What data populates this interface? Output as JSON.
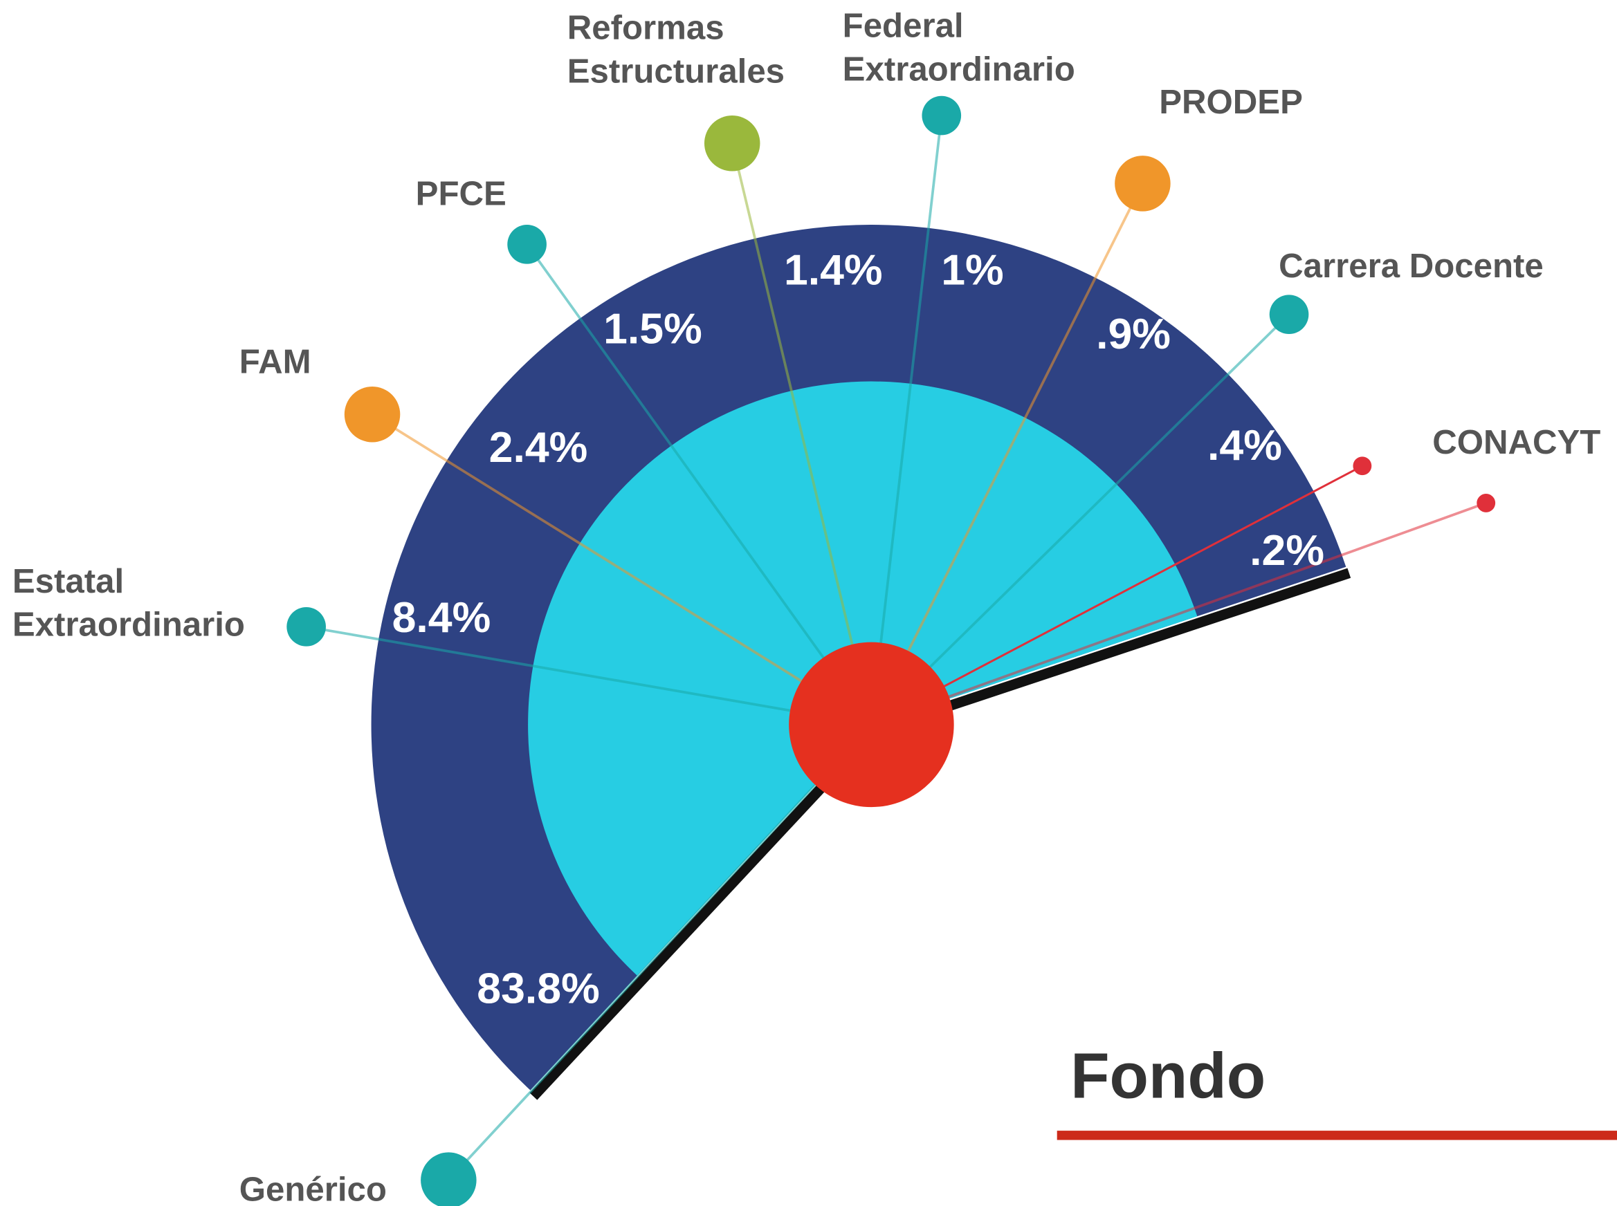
{
  "chart_data": {
    "type": "fan",
    "title": "Fondo",
    "categories": [
      [
        "Genérico"
      ],
      [
        "Estatal",
        "Extraordinario"
      ],
      [
        "FAM"
      ],
      [
        "PFCE"
      ],
      [
        "Reformas",
        "Estructurales"
      ],
      [
        "Federal",
        "Extraordinario"
      ],
      [
        "PRODEP"
      ],
      [
        "Carrera Docente"
      ],
      [
        "CONACYT"
      ]
    ],
    "values": [
      83.8,
      8.4,
      2.4,
      1.5,
      1.4,
      1,
      0.9,
      0.4,
      0.2
    ],
    "value_labels": [
      "83.8%",
      "8.4%",
      "2.4%",
      "1.5%",
      "1.4%",
      "1%",
      ".9%",
      ".4%",
      ".2%"
    ],
    "colors": [
      "#1aa9a8",
      "#1aa9a8",
      "#f0962a",
      "#1aa9a8",
      "#9ab83c",
      "#1aa9a8",
      "#f0962a",
      "#1aa9a8",
      "#e0303a"
    ]
  }
}
